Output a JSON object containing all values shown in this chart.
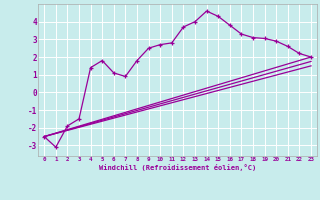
{
  "xlabel": "Windchill (Refroidissement éolien,°C)",
  "background_color": "#c8ecec",
  "grid_color": "#ffffff",
  "line_color": "#990099",
  "xlim": [
    -0.5,
    23.5
  ],
  "ylim": [
    -3.6,
    5.0
  ],
  "xticks": [
    0,
    1,
    2,
    3,
    4,
    5,
    6,
    7,
    8,
    9,
    10,
    11,
    12,
    13,
    14,
    15,
    16,
    17,
    18,
    19,
    20,
    21,
    22,
    23
  ],
  "yticks": [
    -3,
    -2,
    -1,
    0,
    1,
    2,
    3,
    4
  ],
  "line1_x": [
    0,
    1,
    2,
    3,
    4,
    5,
    6,
    7,
    8,
    9,
    10,
    11,
    12,
    13,
    14,
    15,
    16,
    17,
    18,
    19,
    20,
    21,
    22,
    23
  ],
  "line1_y": [
    -2.5,
    -3.1,
    -1.9,
    -1.5,
    1.4,
    1.8,
    1.1,
    0.9,
    1.8,
    2.5,
    2.7,
    2.8,
    3.7,
    4.0,
    4.6,
    4.3,
    3.8,
    3.3,
    3.1,
    3.05,
    2.9,
    2.6,
    2.2,
    2.0
  ],
  "line2_x": [
    0,
    23
  ],
  "line2_y": [
    -2.5,
    2.0
  ],
  "line3_x": [
    0,
    23
  ],
  "line3_y": [
    -2.5,
    1.75
  ],
  "line4_x": [
    0,
    23
  ],
  "line4_y": [
    -2.5,
    1.5
  ]
}
